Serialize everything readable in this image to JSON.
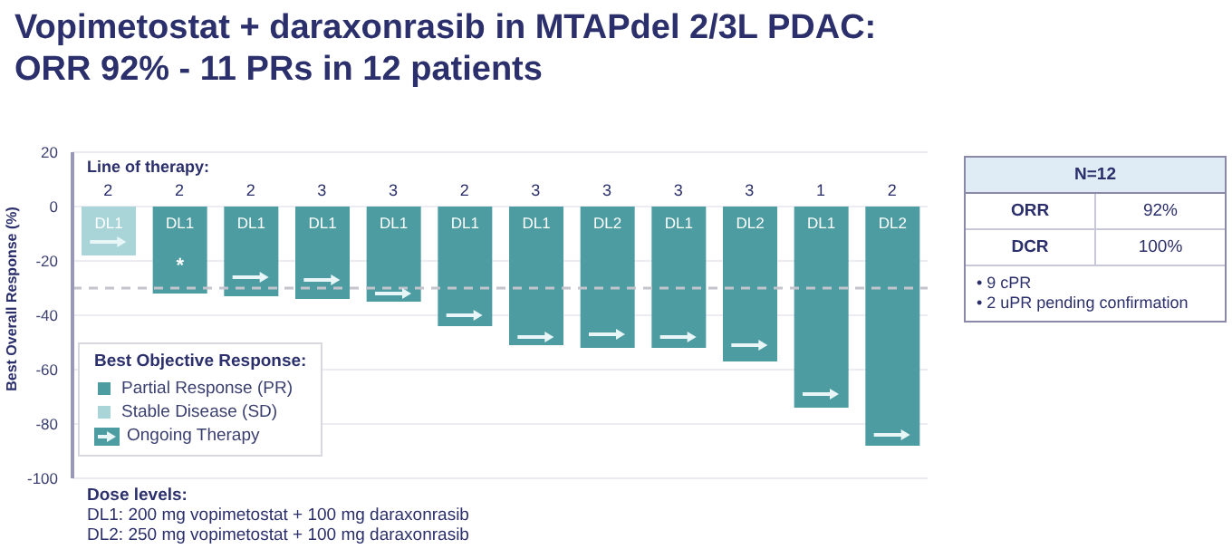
{
  "chart_data": [
    {
      "type": "bar",
      "title": "Vopimetostat + daraxonrasib in MTAPdel 2/3L PDAC:\nORR 92% - 11 PRs in 12 patients",
      "ylabel": "Best Overall Response (%)",
      "legend_title": "Best Objective Response:",
      "categories": [
        "2",
        "2",
        "2",
        "3",
        "3",
        "2",
        "3",
        "3",
        "3",
        "3",
        "1",
        "2"
      ],
      "series": [
        {
          "name": "Partial Response (PR)",
          "color": "#4c9ca2",
          "values": [
            null,
            -32,
            -33,
            -34,
            -35,
            -44,
            -51,
            -52,
            -52,
            -57,
            -74,
            -88
          ]
        },
        {
          "name": "Stable Disease (SD)",
          "color": "#a9d5d9",
          "values": [
            -18,
            null,
            null,
            null,
            null,
            null,
            null,
            null,
            null,
            null,
            null,
            null
          ]
        },
        {
          "name": "Ongoing Therapy",
          "type": "scatter",
          "color": "#e8f6f7",
          "values": [
            -13,
            null,
            -26,
            -27,
            -32,
            -40,
            -48,
            -47,
            -48,
            -51,
            -69,
            -84
          ]
        }
      ],
      "stacked": true,
      "ylim": [
        -100,
        20
      ],
      "yticks": [
        -100,
        -80,
        -60,
        -40,
        -20,
        0,
        20
      ],
      "grid": "y",
      "legend": "bottom left",
      "ref_lines": [
        {
          "axis": "y",
          "value": -30,
          "color": "#c4c4cc",
          "line_style": "dashed"
        }
      ],
      "annotations": [
        "Line of therapy:",
        "DL1",
        "DL1",
        "DL1",
        "DL1",
        "DL1",
        "DL1",
        "DL1",
        "DL2",
        "DL1",
        "DL2",
        "DL1",
        "DL2",
        "*",
        "Dose levels:",
        "DL1: 200 mg vopimetostat + 100 mg daraxonrasib",
        "DL2: 250 mg vopimetostat + 100 mg daraxonrasib"
      ]
    },
    {
      "type": "other",
      "title": "N=12",
      "annotations": [
        "ORR",
        "92%",
        "DCR",
        "100%",
        "• 9 cPR",
        "• 2 uPR pending confirmation"
      ]
    }
  ]
}
